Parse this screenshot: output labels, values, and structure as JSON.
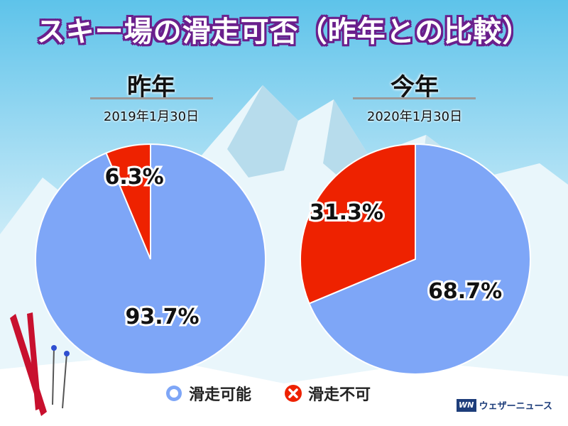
{
  "title": "スキー場の滑走可否（昨年との比較）",
  "colors": {
    "available": "#7ea6f7",
    "unavailable": "#ee2200",
    "title_outline": "#6a1f8c"
  },
  "chart_data": [
    {
      "type": "pie",
      "title": "昨年",
      "subtitle": "2019年1月30日",
      "slices": [
        {
          "label": "滑走可能",
          "value": 93.7,
          "value_label": "93.7%"
        },
        {
          "label": "滑走不可",
          "value": 6.3,
          "value_label": "6.3%"
        }
      ]
    },
    {
      "type": "pie",
      "title": "今年",
      "subtitle": "2020年1月30日",
      "slices": [
        {
          "label": "滑走可能",
          "value": 68.7,
          "value_label": "68.7%"
        },
        {
          "label": "滑走不可",
          "value": 31.3,
          "value_label": "31.3%"
        }
      ]
    }
  ],
  "legend": [
    {
      "label": "滑走可能",
      "icon": "circle-icon"
    },
    {
      "label": "滑走不可",
      "icon": "cross-icon"
    }
  ],
  "brand": {
    "logo_text": "WN",
    "name": "ウェザーニュース"
  }
}
